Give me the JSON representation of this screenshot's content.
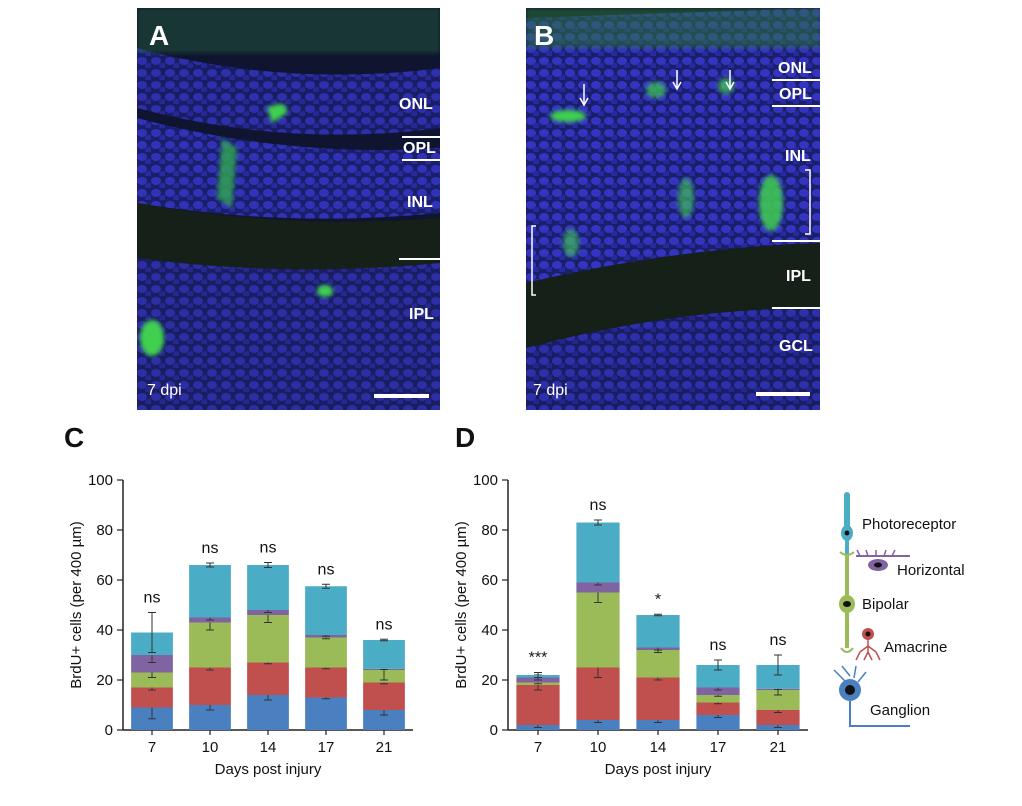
{
  "panel_a": {
    "letter": "A",
    "layers": [
      "ONL",
      "OPL",
      "INL",
      "IPL"
    ],
    "dpi": "7 dpi"
  },
  "panel_b": {
    "letter": "B",
    "layers": [
      "ONL",
      "OPL",
      "INL",
      "IPL",
      "GCL"
    ],
    "dpi": "7 dpi"
  },
  "chart_data": [
    {
      "type": "bar",
      "stacked": true,
      "panel_letter": "C",
      "categories": [
        "7",
        "10",
        "14",
        "17",
        "21"
      ],
      "xlabel": "Days post injury",
      "ylabel": "BrdU+ cells (per 400 µm)",
      "ylim": [
        0,
        100
      ],
      "yticks": [
        0,
        20,
        40,
        60,
        80,
        100
      ],
      "significance": [
        "ns",
        "ns",
        "ns",
        "ns",
        "ns"
      ],
      "series": [
        {
          "name": "Ganglion",
          "color": "#4a7fc0",
          "values": [
            9,
            10,
            14,
            13,
            8
          ],
          "err": [
            4.5,
            2,
            2,
            0.5,
            2
          ]
        },
        {
          "name": "Amacrine",
          "color": "#c0504d",
          "values": [
            8,
            15,
            13,
            12,
            11
          ],
          "err": [
            1,
            1,
            0.5,
            0.5,
            0.5
          ]
        },
        {
          "name": "Bipolar",
          "color": "#9bbb59",
          "values": [
            6,
            18,
            19,
            12,
            5
          ],
          "err": [
            2,
            3,
            3,
            0.5,
            4
          ]
        },
        {
          "name": "Horizontal",
          "color": "#8064a2",
          "values": [
            7,
            2,
            2,
            1,
            0.5
          ],
          "err": [
            3,
            1,
            1,
            0.5,
            0.3
          ]
        },
        {
          "name": "Photoreceptor",
          "color": "#4bacc6",
          "values": [
            9,
            21,
            18,
            19.5,
            11.5
          ],
          "err": [
            8,
            0.8,
            1,
            0.8,
            0.3
          ]
        }
      ]
    },
    {
      "type": "bar",
      "stacked": true,
      "panel_letter": "D",
      "categories": [
        "7",
        "10",
        "14",
        "17",
        "21"
      ],
      "xlabel": "Days post injury",
      "ylabel": "BrdU+ cells (per 400 µm)",
      "ylim": [
        0,
        100
      ],
      "yticks": [
        0,
        20,
        40,
        60,
        80,
        100
      ],
      "significance": [
        "***",
        "ns",
        "*",
        "ns",
        "ns"
      ],
      "series": [
        {
          "name": "Ganglion",
          "color": "#4a7fc0",
          "values": [
            2,
            4,
            4,
            6,
            2
          ],
          "err": [
            1,
            1,
            1,
            1,
            1
          ]
        },
        {
          "name": "Amacrine",
          "color": "#c0504d",
          "values": [
            16,
            21,
            17,
            5,
            6
          ],
          "err": [
            2,
            4,
            1,
            0.5,
            1
          ]
        },
        {
          "name": "Bipolar",
          "color": "#9bbb59",
          "values": [
            1,
            30,
            11,
            3,
            8
          ],
          "err": [
            0.5,
            4,
            1,
            0.5,
            2
          ]
        },
        {
          "name": "Horizontal",
          "color": "#8064a2",
          "values": [
            2,
            4,
            1,
            3,
            0.5
          ],
          "err": [
            1,
            1,
            1,
            1,
            0.3
          ]
        },
        {
          "name": "Photoreceptor",
          "color": "#4bacc6",
          "values": [
            1,
            24,
            13,
            9,
            9.5
          ],
          "err": [
            1,
            1,
            0.3,
            2,
            4
          ]
        }
      ]
    }
  ],
  "legend": {
    "items": [
      "Photoreceptor",
      "Horizontal",
      "Bipolar",
      "Amacrine",
      "Ganglion"
    ]
  }
}
